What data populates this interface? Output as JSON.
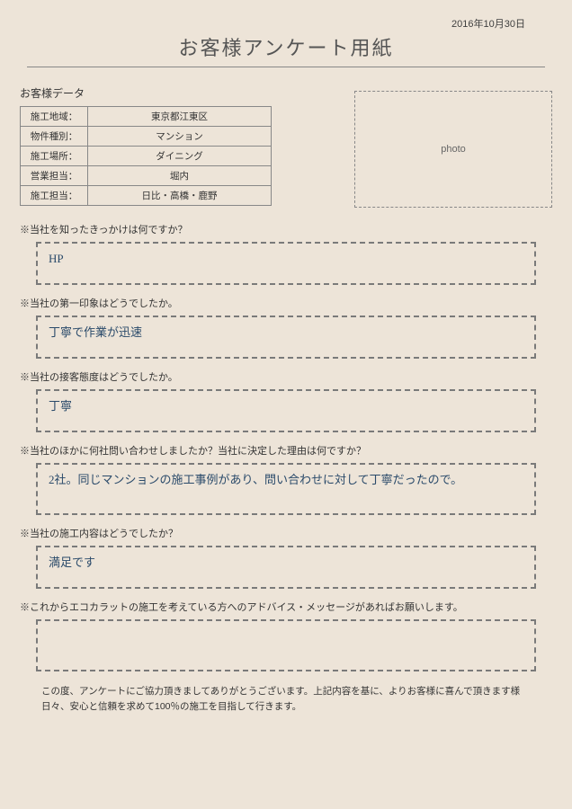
{
  "date": "2016年10月30日",
  "title": "お客様アンケート用紙",
  "customer_data_label": "お客様データ",
  "table": {
    "rows": [
      {
        "label": "施工地域：",
        "value": "東京都江東区",
        "handwritten": false
      },
      {
        "label": "物件種別：",
        "value": "マンション",
        "handwritten": false
      },
      {
        "label": "施工場所：",
        "value": "ダイニング",
        "handwritten": false
      },
      {
        "label": "営業担当：",
        "value": "堀内",
        "handwritten": false
      },
      {
        "label": "施工担当：",
        "value": "日比・高橋・鹿野",
        "handwritten": true
      }
    ]
  },
  "photo_placeholder": "photo",
  "questions": [
    {
      "q": "※当社を知ったきっかけは何ですか？",
      "a": "HP",
      "tall": false
    },
    {
      "q": "※当社の第一印象はどうでしたか。",
      "a": "丁寧で作業が迅速",
      "tall": false
    },
    {
      "q": "※当社の接客態度はどうでしたか。",
      "a": "丁寧",
      "tall": false
    },
    {
      "q": "※当社のほかに何社問い合わせしましたか？当社に決定した理由は何ですか？",
      "a": "2社。同じマンションの施工事例があり、問い合わせに対して丁寧だったので。",
      "tall": true
    },
    {
      "q": "※当社の施工内容はどうでしたか？",
      "a": "満足です",
      "tall": false
    },
    {
      "q": "※これからエコカラットの施工を考えている方へのアドバイス・メッセージがあればお願いします。",
      "a": "",
      "tall": true
    }
  ],
  "footer": "この度、アンケートにご協力頂きましてありがとうございます。上記内容を基に、よりお客様に喜んで頂きます様日々、安心と信頼を求めて100％の施工を目指して行きます。",
  "colors": {
    "background": "#ede4d8",
    "border": "#888888",
    "dashed_border": "#7a7a7a",
    "text": "#333333",
    "handwriting": "#2a4a6a"
  }
}
